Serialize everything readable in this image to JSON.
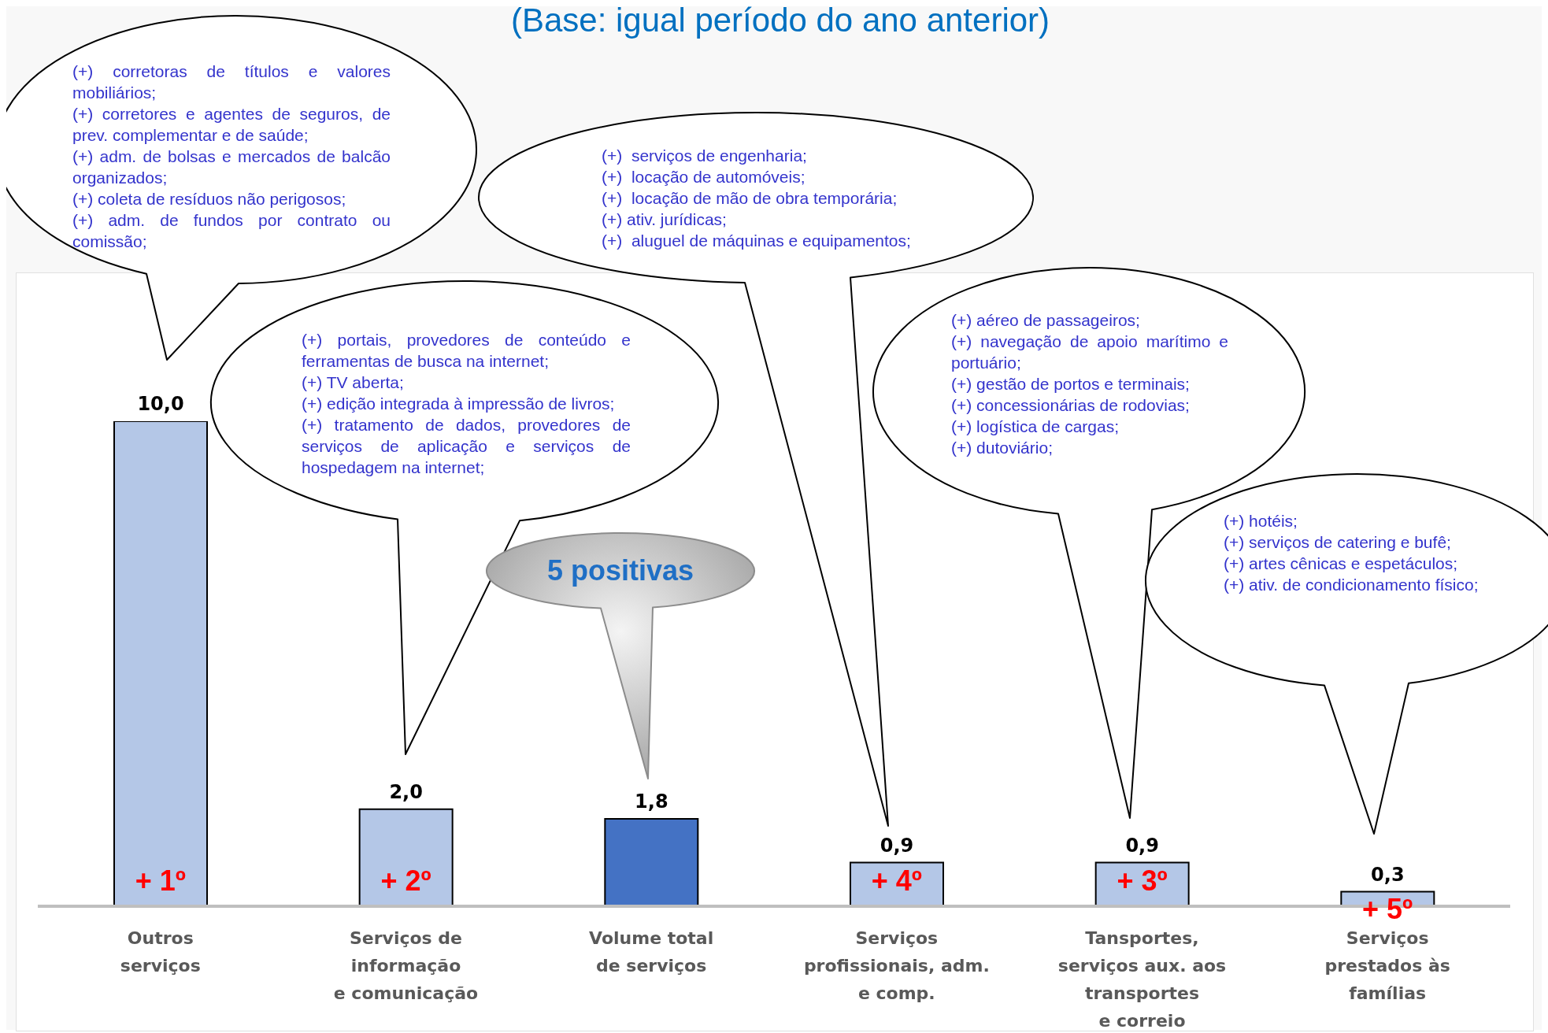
{
  "chart_data": {
    "type": "bar",
    "subtitle": "(Base: igual período do ano anterior)",
    "categories": [
      "Outros\nserviços",
      "Serviços de\ninformação\ne comunicação",
      "Volume total\nde serviços",
      "Serviços\nprofissionais, adm.\ne comp.",
      "Tansportes,\nserviços aux. aos\ntransportes\ne correio",
      "Serviços\nprestados às\nfamílias"
    ],
    "values": [
      10.0,
      2.0,
      1.8,
      0.9,
      0.9,
      0.3
    ],
    "value_labels": [
      "10,0",
      "2,0",
      "1,8",
      "0,9",
      "0,9",
      "0,3"
    ],
    "colors": [
      "#b4c7e7",
      "#b4c7e7",
      "#4472c4",
      "#b4c7e7",
      "#b4c7e7",
      "#b4c7e7"
    ],
    "annotations": [
      "(+) corretoras de títulos e valores mobiliários;\n(+) corretores e agentes de seguros, de prev. complementar e de saúde;\n(+) adm. de bolsas e mercados de balcão organizados;\n(+) coleta de resíduos não perigosos;\n(+) adm. de fundos por contrato ou comissão;",
      "(+) portais, provedores de conteúdo e ferramentas de busca na internet;\n(+) TV aberta;\n(+) edição integrada à impressão de livros;\n(+) tratamento de dados, provedores de serviços de aplicação e serviços de hospedagem na internet;",
      "(+)  serviços de engenharia;\n(+)  locação de automóveis;\n(+)  locação de mão de obra temporária;\n(+) ativ. jurídicas;\n(+)  aluguel de máquinas e equipamentos;",
      "(+) aéreo de passageiros;\n(+) navegação de apoio marítimo e portuário;\n(+) gestão de portos e terminais;\n(+) concessionárias de rodovias;\n(+) logística de cargas;\n(+) dutoviário;",
      "(+) hotéis;\n(+) serviços de catering e bufê;\n(+) artes cênicas e espetáculos;\n(+) ativ. de condicionamento físico;",
      "5 positivas",
      {
        "text": "+ 1º",
        "x": "Outros\nserviços",
        "y": 0
      },
      {
        "text": "+ 2º",
        "x": "Serviços de\ninformação\ne comunicação",
        "y": 0
      },
      {
        "text": "+ 4º",
        "x": "Serviços\nprofissionais, adm.\ne comp.",
        "y": 0
      },
      {
        "text": "+ 3º",
        "x": "Tansportes,\nserviços aux. aos\ntransportes\ne correio",
        "y": 0
      },
      {
        "text": "+ 5º",
        "x": "Serviços\nprestados às\nfamílias",
        "y": 0
      }
    ]
  }
}
